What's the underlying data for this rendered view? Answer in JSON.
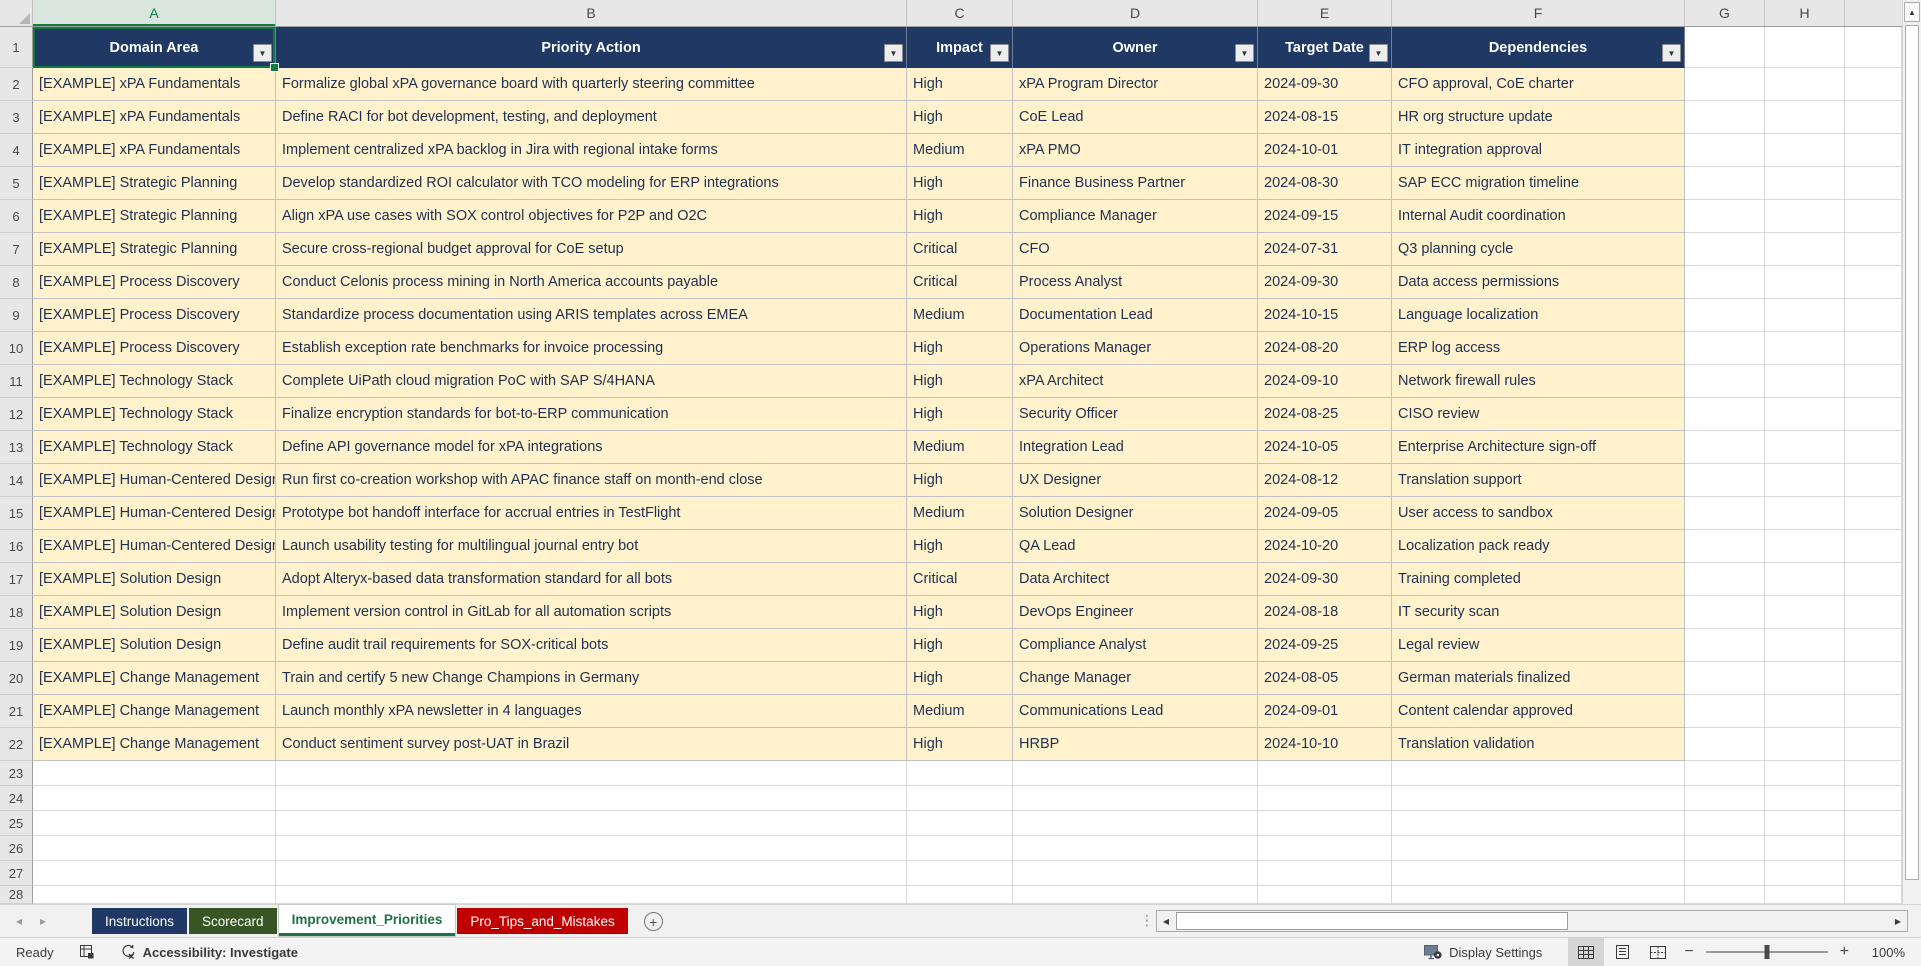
{
  "sheet": {
    "selected_cell": "A1"
  },
  "grid": {
    "column_letters": [
      "A",
      "B",
      "C",
      "D",
      "E",
      "F",
      "G",
      "H"
    ],
    "row_numbers": [
      "1",
      "2",
      "3",
      "4",
      "5",
      "6",
      "7",
      "8",
      "9",
      "10",
      "11",
      "12",
      "13",
      "14",
      "15",
      "16",
      "17",
      "18",
      "19",
      "20",
      "21",
      "22",
      "23",
      "24",
      "25",
      "26",
      "27",
      "28"
    ]
  },
  "table": {
    "headers": [
      "Domain Area",
      "Priority Action",
      "Impact",
      "Owner",
      "Target Date",
      "Dependencies"
    ],
    "rows": [
      [
        "[EXAMPLE] xPA Fundamentals",
        "Formalize global xPA governance board with quarterly steering committee",
        "High",
        "xPA Program Director",
        "2024-09-30",
        "CFO approval, CoE charter"
      ],
      [
        "[EXAMPLE] xPA Fundamentals",
        "Define RACI for bot development, testing, and deployment",
        "High",
        "CoE Lead",
        "2024-08-15",
        "HR org structure update"
      ],
      [
        "[EXAMPLE] xPA Fundamentals",
        "Implement centralized xPA backlog in Jira with regional intake forms",
        "Medium",
        "xPA PMO",
        "2024-10-01",
        "IT integration approval"
      ],
      [
        "[EXAMPLE] Strategic Planning",
        "Develop standardized ROI calculator with TCO modeling for ERP integrations",
        "High",
        "Finance Business Partner",
        "2024-08-30",
        "SAP ECC migration timeline"
      ],
      [
        "[EXAMPLE] Strategic Planning",
        "Align xPA use cases with SOX control objectives for P2P and O2C",
        "High",
        "Compliance Manager",
        "2024-09-15",
        "Internal Audit coordination"
      ],
      [
        "[EXAMPLE] Strategic Planning",
        "Secure cross-regional budget approval for CoE setup",
        "Critical",
        "CFO",
        "2024-07-31",
        "Q3 planning cycle"
      ],
      [
        "[EXAMPLE] Process Discovery",
        "Conduct Celonis process mining in North America accounts payable",
        "Critical",
        "Process Analyst",
        "2024-09-30",
        "Data access permissions"
      ],
      [
        "[EXAMPLE] Process Discovery",
        "Standardize process documentation using ARIS templates across EMEA",
        "Medium",
        "Documentation Lead",
        "2024-10-15",
        "Language localization"
      ],
      [
        "[EXAMPLE] Process Discovery",
        "Establish exception rate benchmarks for invoice processing",
        "High",
        "Operations Manager",
        "2024-08-20",
        "ERP log access"
      ],
      [
        "[EXAMPLE] Technology Stack",
        "Complete UiPath cloud migration PoC with SAP S/4HANA",
        "High",
        "xPA Architect",
        "2024-09-10",
        "Network firewall rules"
      ],
      [
        "[EXAMPLE] Technology Stack",
        "Finalize encryption standards for bot-to-ERP communication",
        "High",
        "Security Officer",
        "2024-08-25",
        "CISO review"
      ],
      [
        "[EXAMPLE] Technology Stack",
        "Define API governance model for xPA integrations",
        "Medium",
        "Integration Lead",
        "2024-10-05",
        "Enterprise Architecture sign-off"
      ],
      [
        "[EXAMPLE] Human-Centered Design",
        "Run first co-creation workshop with APAC finance staff on month-end close",
        "High",
        "UX Designer",
        "2024-08-12",
        "Translation support"
      ],
      [
        "[EXAMPLE] Human-Centered Design",
        "Prototype bot handoff interface for accrual entries in TestFlight",
        "Medium",
        "Solution Designer",
        "2024-09-05",
        "User access to sandbox"
      ],
      [
        "[EXAMPLE] Human-Centered Design",
        "Launch usability testing for multilingual journal entry bot",
        "High",
        "QA Lead",
        "2024-10-20",
        "Localization pack ready"
      ],
      [
        "[EXAMPLE] Solution Design",
        "Adopt Alteryx-based data transformation standard for all bots",
        "Critical",
        "Data Architect",
        "2024-09-30",
        "Training completed"
      ],
      [
        "[EXAMPLE] Solution Design",
        "Implement version control in GitLab for all automation scripts",
        "High",
        "DevOps Engineer",
        "2024-08-18",
        "IT security scan"
      ],
      [
        "[EXAMPLE] Solution Design",
        "Define audit trail requirements for SOX-critical bots",
        "High",
        "Compliance Analyst",
        "2024-09-25",
        "Legal review"
      ],
      [
        "[EXAMPLE] Change Management",
        "Train and certify 5 new Change Champions in Germany",
        "High",
        "Change Manager",
        "2024-08-05",
        "German materials finalized"
      ],
      [
        "[EXAMPLE] Change Management",
        "Launch monthly xPA newsletter in 4 languages",
        "Medium",
        "Communications Lead",
        "2024-09-01",
        "Content calendar approved"
      ],
      [
        "[EXAMPLE] Change Management",
        "Conduct sentiment survey post-UAT in Brazil",
        "High",
        "HRBP",
        "2024-10-10",
        "Translation validation"
      ]
    ]
  },
  "tabs": {
    "items": [
      {
        "label": "Instructions",
        "bg": "#1F3864",
        "fg": "#FFFFFF",
        "active": false
      },
      {
        "label": "Scorecard",
        "bg": "#375623",
        "fg": "#FFFFFF",
        "active": false
      },
      {
        "label": "Improvement_Priorities",
        "bg": "#FFFFFF",
        "fg": "#1E7145",
        "active": true
      },
      {
        "label": "Pro_Tips_and_Mistakes",
        "bg": "#C00000",
        "fg": "#FFFFFF",
        "active": false
      }
    ]
  },
  "status_bar": {
    "ready": "Ready",
    "accessibility": "Accessibility: Investigate",
    "display_settings": "Display Settings",
    "zoom_level": "100%"
  },
  "icons": {
    "filter_arrow": "▼",
    "scroll_up": "▲",
    "scroll_left": "◀",
    "scroll_right": "▶",
    "tab_nav_left": "◂",
    "tab_nav_right": "▸",
    "add_sheet": "+",
    "zoom_out": "−",
    "zoom_in": "+",
    "splitter": "⋮"
  },
  "colors": {
    "header_fill": "#1F3864",
    "row_fill": "#FFF2CC",
    "selection_green": "#107C41",
    "active_tab_green": "#1E7145",
    "tab_red": "#C00000",
    "tab_dark_green": "#375623"
  }
}
